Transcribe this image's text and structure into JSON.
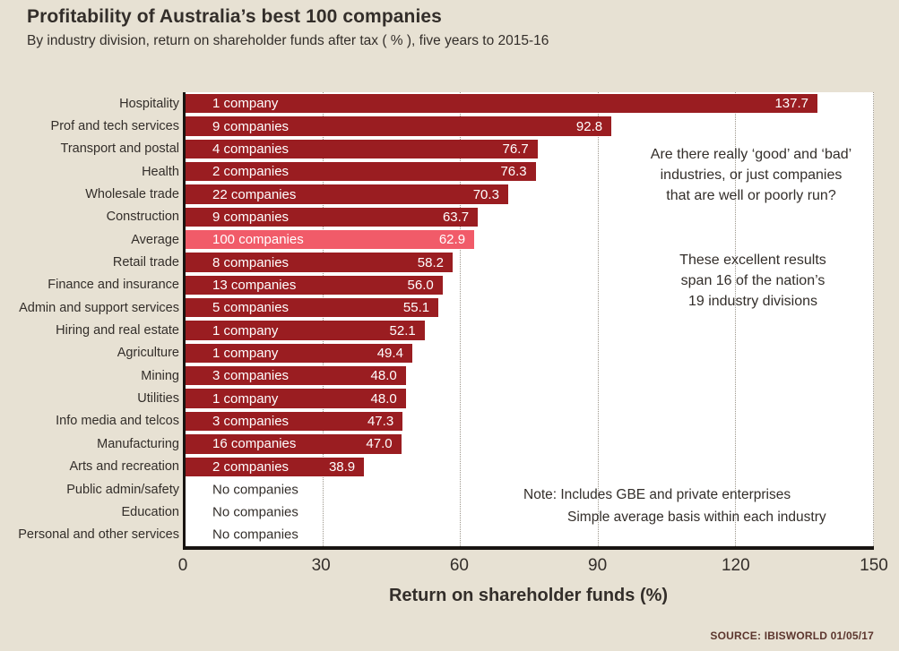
{
  "page": {
    "title": "Profitability of Australia’s best 100 companies",
    "subtitle": "By industry division, return on shareholder funds after tax ( % ), five years to 2015-16",
    "source": "SOURCE: IBISWORLD 01/05/17"
  },
  "colors": {
    "background": "#e7e1d3",
    "bar": "#9a1d21",
    "bar_highlight": "#f15b69",
    "bar_text": "#ffffff",
    "text": "#332e2a",
    "gridline": "#9c968b",
    "axis_line": "#181411",
    "source_text": "#5c362e"
  },
  "chart_data": {
    "type": "bar",
    "orientation": "horizontal",
    "title": "Profitability of Australia’s best 100 companies",
    "subtitle": "By industry division, return on shareholder funds after tax ( % ), five years to 2015-16",
    "xlabel": "Return on shareholder funds (%)",
    "xlim": [
      0,
      150
    ],
    "xticks": [
      0,
      30,
      60,
      90,
      120,
      150
    ],
    "grid": "dotted-vertical",
    "legend": "none",
    "rows": [
      {
        "label": "Hospitality",
        "count": "1 company",
        "value": 137.7,
        "display": "137.7",
        "highlight": false
      },
      {
        "label": "Prof and tech services",
        "count": "9 companies",
        "value": 92.8,
        "display": "92.8",
        "highlight": false
      },
      {
        "label": "Transport and postal",
        "count": "4 companies",
        "value": 76.7,
        "display": "76.7",
        "highlight": false
      },
      {
        "label": "Health",
        "count": "2 companies",
        "value": 76.3,
        "display": "76.3",
        "highlight": false
      },
      {
        "label": "Wholesale trade",
        "count": "22 companies",
        "value": 70.3,
        "display": "70.3",
        "highlight": false
      },
      {
        "label": "Construction",
        "count": "9 companies",
        "value": 63.7,
        "display": "63.7",
        "highlight": false
      },
      {
        "label": "Average",
        "count": "100 companies",
        "value": 62.9,
        "display": "62.9",
        "highlight": true
      },
      {
        "label": "Retail trade",
        "count": "8 companies",
        "value": 58.2,
        "display": "58.2",
        "highlight": false
      },
      {
        "label": "Finance and insurance",
        "count": "13 companies",
        "value": 56.0,
        "display": "56.0",
        "highlight": false
      },
      {
        "label": "Admin and support services",
        "count": "5 companies",
        "value": 55.1,
        "display": "55.1",
        "highlight": false
      },
      {
        "label": "Hiring and real estate",
        "count": "1 company",
        "value": 52.1,
        "display": "52.1",
        "highlight": false
      },
      {
        "label": "Agriculture",
        "count": "1 company",
        "value": 49.4,
        "display": "49.4",
        "highlight": false
      },
      {
        "label": "Mining",
        "count": "3 companies",
        "value": 48.0,
        "display": "48.0",
        "highlight": false
      },
      {
        "label": "Utilities",
        "count": "1 company",
        "value": 48.0,
        "display": "48.0",
        "highlight": false
      },
      {
        "label": "Info media and telcos",
        "count": "3 companies",
        "value": 47.3,
        "display": "47.3",
        "highlight": false
      },
      {
        "label": "Manufacturing",
        "count": "16 companies",
        "value": 47.0,
        "display": "47.0",
        "highlight": false
      },
      {
        "label": "Arts and recreation",
        "count": "2 companies",
        "value": 38.9,
        "display": "38.9",
        "highlight": false
      },
      {
        "label": "Public admin/safety",
        "count": "No companies",
        "value": null,
        "display": "",
        "highlight": false
      },
      {
        "label": "Education",
        "count": "No companies",
        "value": null,
        "display": "",
        "highlight": false
      },
      {
        "label": "Personal and other services",
        "count": "No companies",
        "value": null,
        "display": "",
        "highlight": false
      }
    ],
    "annotations": {
      "question": {
        "lines": [
          "Are there really ‘good’ and ‘bad’",
          "industries, or just companies",
          "that are well or poorly run?"
        ]
      },
      "results": {
        "lines": [
          "These excellent results",
          "span 16 of the nation’s",
          "19 industry divisions"
        ]
      },
      "note": {
        "lines": [
          "Note: Includes GBE and private enterprises",
          "Simple average basis within each industry"
        ]
      }
    }
  }
}
